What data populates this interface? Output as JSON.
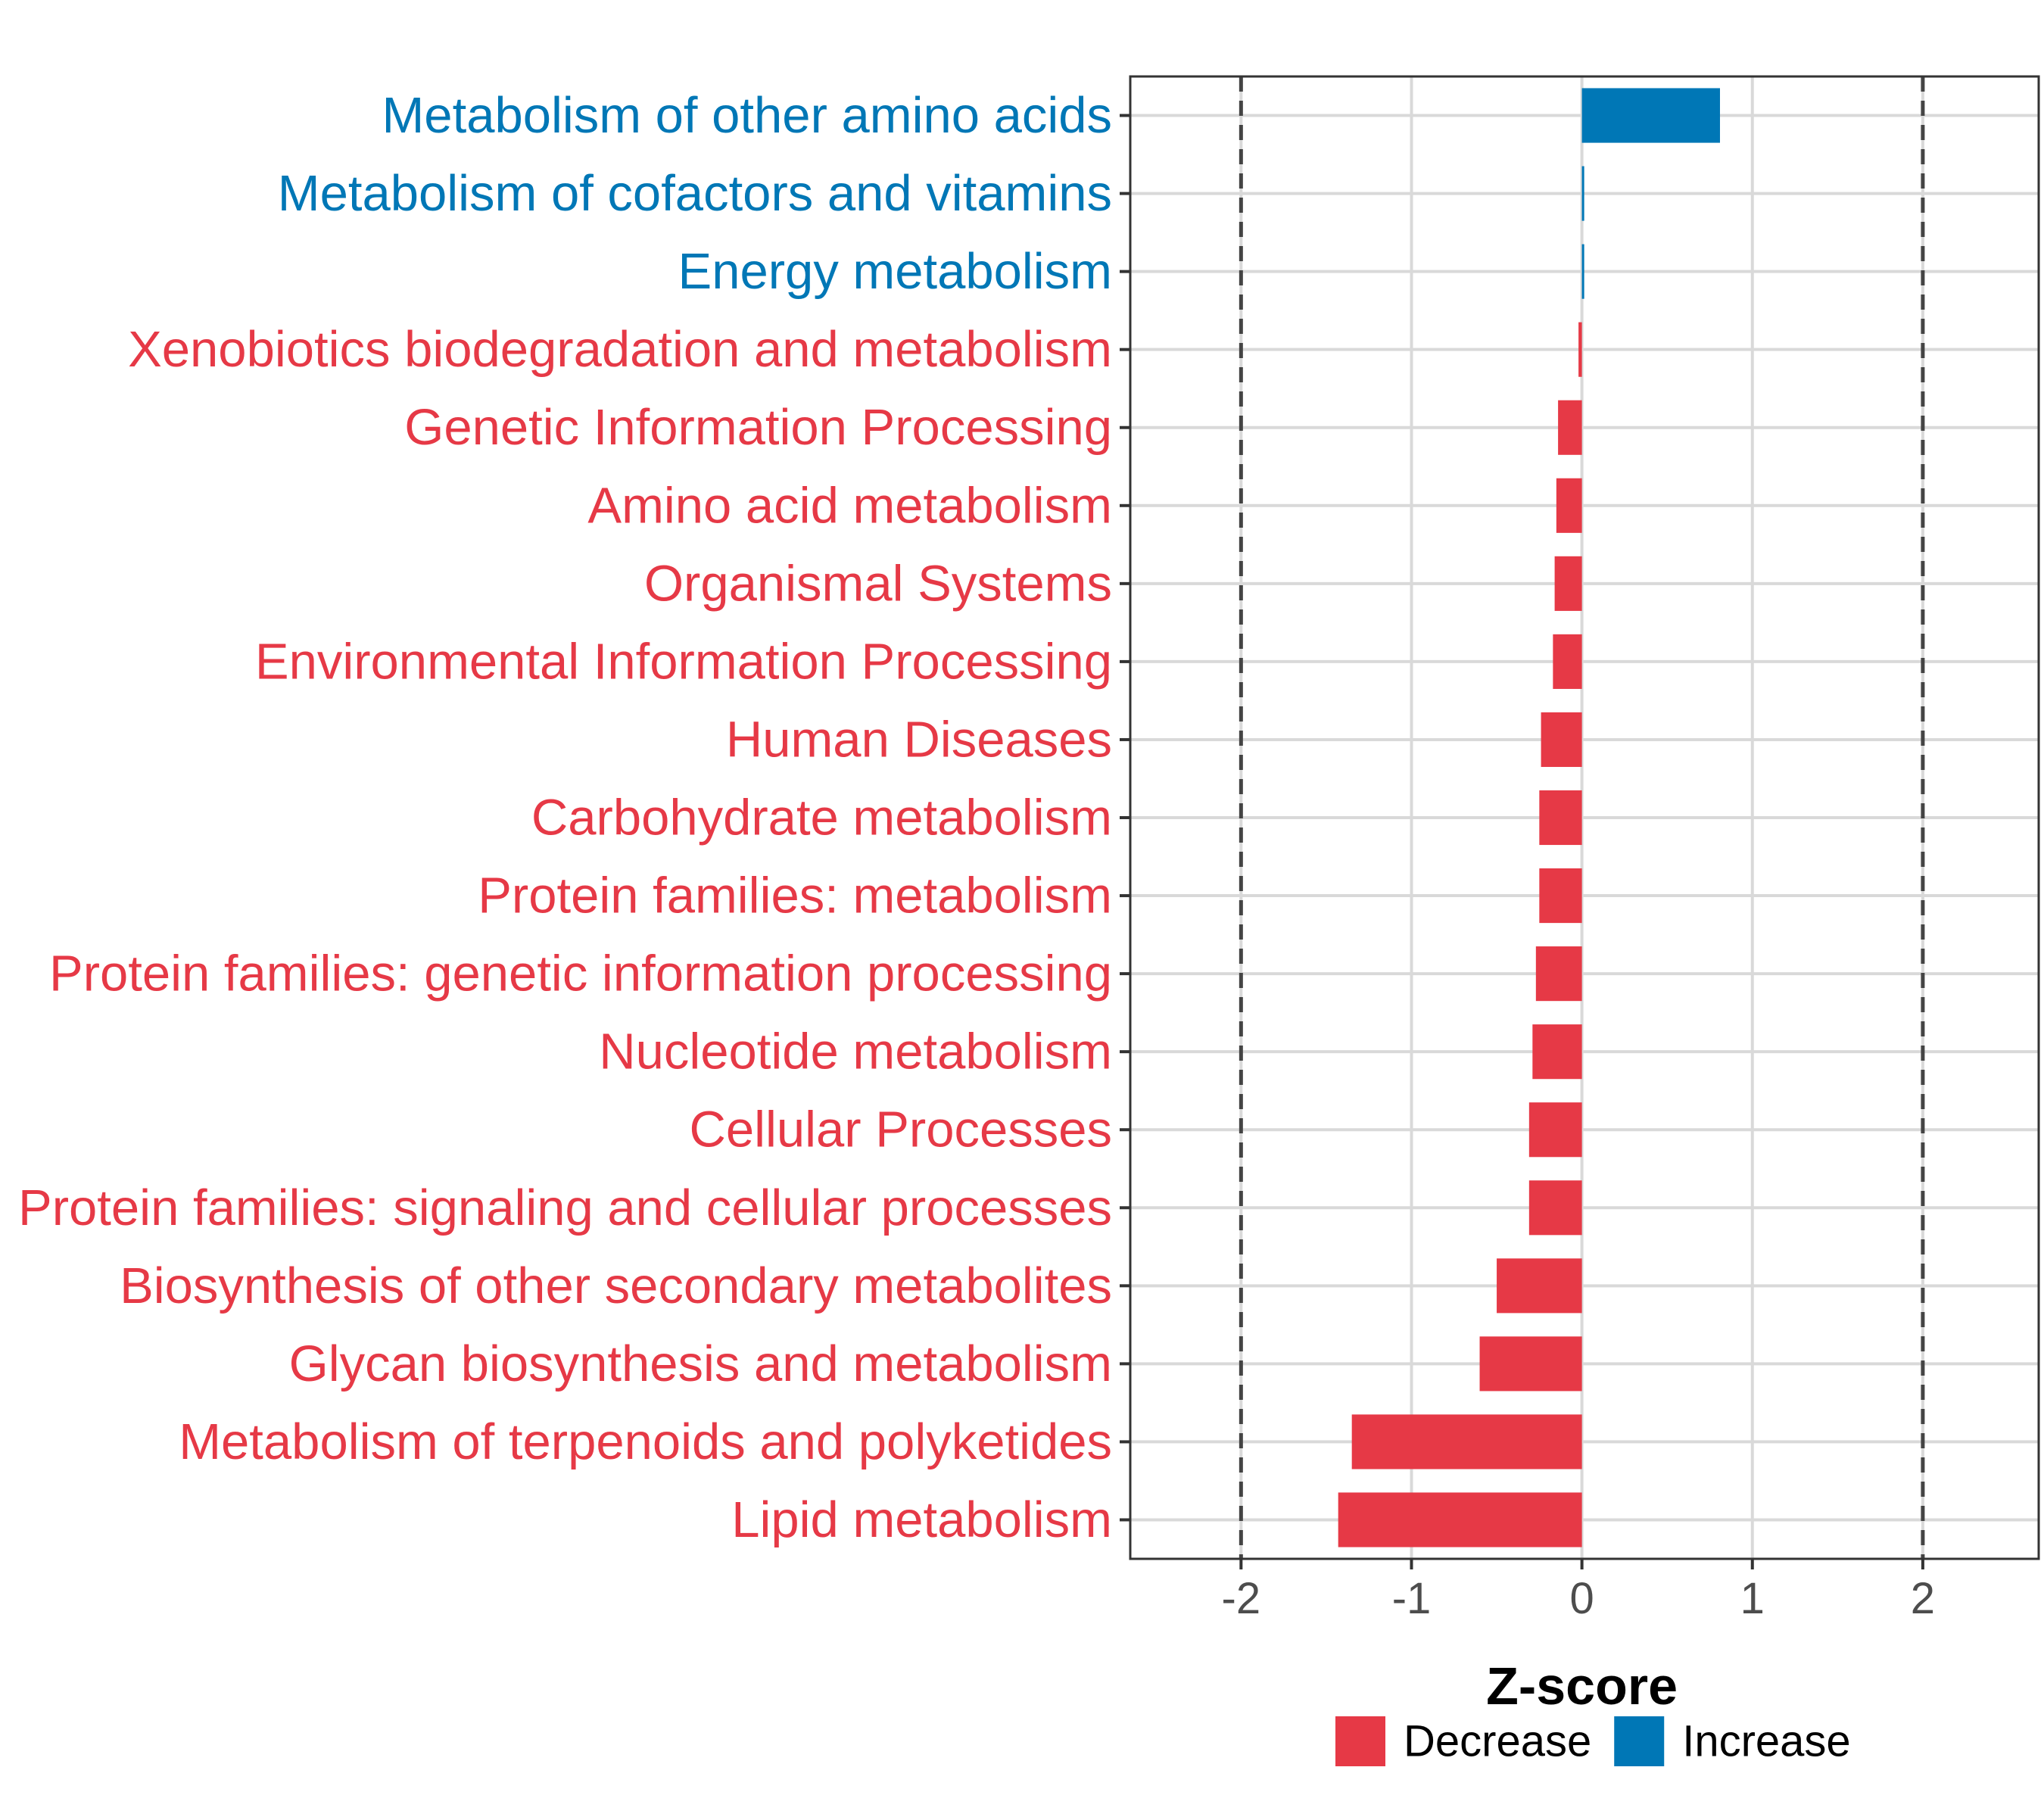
{
  "chart_data": {
    "type": "bar",
    "orientation": "horizontal",
    "xlabel": "Z-score",
    "xlim": [
      -2.65,
      2.68
    ],
    "xticks": [
      -2,
      -1,
      0,
      1,
      2
    ],
    "xtick_labels": [
      "-2",
      "-1",
      "0",
      "1",
      "2"
    ],
    "reference_lines": [
      -2,
      2
    ],
    "grid": true,
    "categories": [
      "Metabolism of other amino acids",
      "Metabolism of cofactors and vitamins",
      "Energy metabolism",
      "Xenobiotics biodegradation and metabolism",
      "Genetic Information Processing",
      "Amino acid metabolism",
      "Organismal Systems",
      "Environmental Information Processing",
      "Human Diseases",
      "Carbohydrate metabolism",
      "Protein families: metabolism",
      "Protein families: genetic information processing",
      "Nucleotide metabolism",
      "Cellular Processes",
      "Protein families: signaling and cellular processes",
      "Biosynthesis of other secondary metabolites",
      "Glycan biosynthesis and metabolism",
      "Metabolism of terpenoids and polyketides",
      "Lipid metabolism"
    ],
    "values": [
      0.81,
      0.01,
      0.01,
      -0.02,
      -0.14,
      -0.15,
      -0.16,
      -0.17,
      -0.24,
      -0.25,
      -0.25,
      -0.27,
      -0.29,
      -0.31,
      -0.31,
      -0.5,
      -0.6,
      -1.35,
      -1.43
    ],
    "groups": [
      "Increase",
      "Increase",
      "Increase",
      "Decrease",
      "Decrease",
      "Decrease",
      "Decrease",
      "Decrease",
      "Decrease",
      "Decrease",
      "Decrease",
      "Decrease",
      "Decrease",
      "Decrease",
      "Decrease",
      "Decrease",
      "Decrease",
      "Decrease",
      "Decrease"
    ],
    "legend": [
      {
        "name": "Decrease",
        "color": "#E63946"
      },
      {
        "name": "Increase",
        "color": "#0077B6"
      }
    ],
    "legend_position": "bottom"
  }
}
